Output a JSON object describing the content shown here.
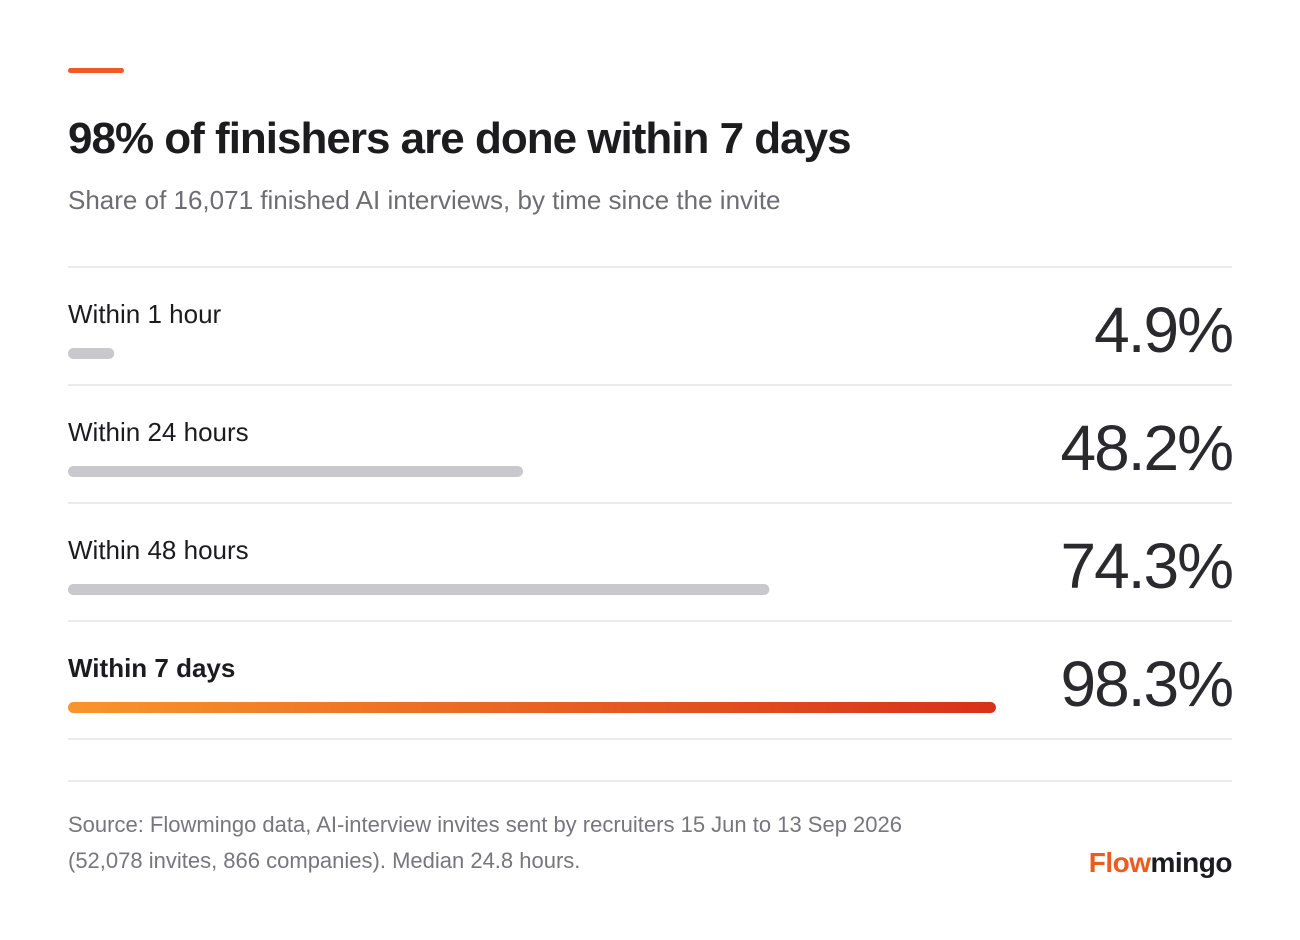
{
  "chart_data": {
    "type": "bar",
    "orientation": "horizontal",
    "title": "98% of finishers are done within 7 days",
    "subtitle": "Share of 16,071 finished AI interviews, by time since the invite",
    "categories": [
      "Within 1 hour",
      "Within 24 hours",
      "Within 48 hours",
      "Within 7 days"
    ],
    "values": [
      4.9,
      48.2,
      74.3,
      98.3
    ],
    "value_labels": [
      "4.9%",
      "48.2%",
      "74.3%",
      "98.3%"
    ],
    "xlim": [
      0,
      100
    ],
    "color": "#c9c9cd",
    "value_color": "#2a2a2e",
    "highlight": 3,
    "highlight_gradient": [
      "#f8952c",
      "#d8311a"
    ],
    "highlight_color": "#ee5a20",
    "source_lines": [
      "Source: Flowmingo data, AI-interview invites sent by recruiters 15 Jun to 13 Sep 2026",
      "(52,078 invites, 866 companies). Median 24.8 hours."
    ],
    "brand_accent": "Flow",
    "brand_rest": "mingo",
    "brand_accent_color": "#f05a1e",
    "brand_rest_color": "#1c1c1f"
  }
}
